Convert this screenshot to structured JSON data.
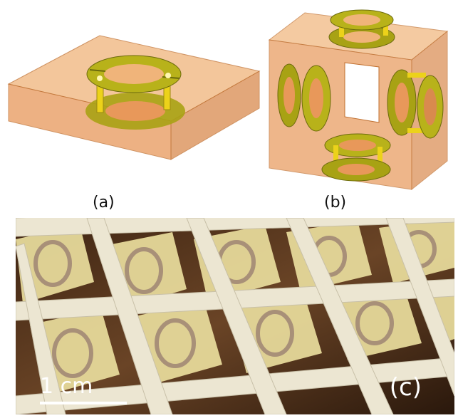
{
  "figure": {
    "panel_a_label": "(a)",
    "panel_b_label": "(b)",
    "panel_c_label": "(c)",
    "scale_bar_text": "1 cm"
  },
  "colors": {
    "box_orange": "#e8a060",
    "box_edge": "#c07030",
    "ring_yellow": "#b8b21a",
    "ring_dark": "#6b6a0c",
    "post_yellow": "#ecd21a",
    "grid_cream": "#e8e2cc",
    "cell_yellow": "#e8dc9a",
    "wood": "#5a3820",
    "ring_metal": "#a89078"
  }
}
